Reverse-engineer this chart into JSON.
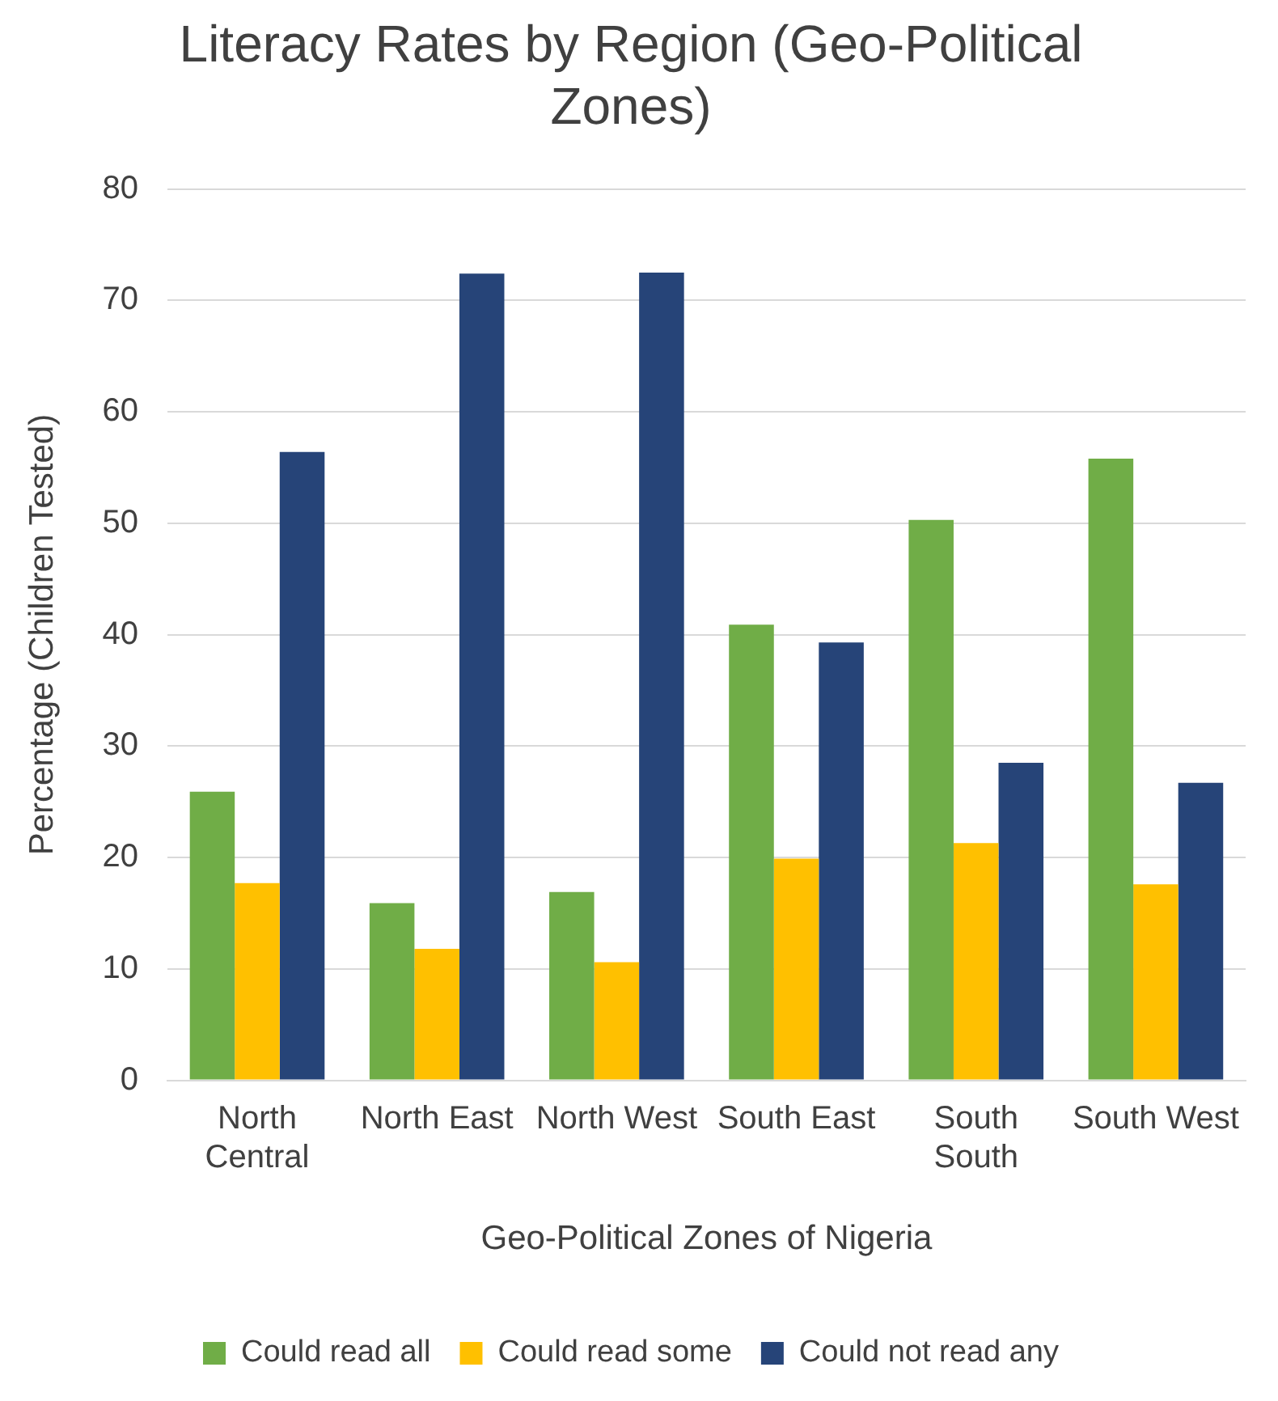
{
  "chart_data": {
    "type": "bar",
    "title": "Literacy Rates by Region (Geo-Political Zones)",
    "xlabel": "Geo-Political Zones of Nigeria",
    "ylabel": "Percentage (Children Tested)",
    "categories": [
      "North Central",
      "North East",
      "North West",
      "South East",
      "South South",
      "South West"
    ],
    "series": [
      {
        "name": "Could read all",
        "color": "#70ad47",
        "values": [
          25.9,
          15.9,
          16.9,
          40.9,
          50.3,
          55.8
        ]
      },
      {
        "name": "Could read some",
        "color": "#ffc000",
        "values": [
          17.7,
          11.8,
          10.6,
          19.9,
          21.3,
          17.6
        ]
      },
      {
        "name": "Could not read any",
        "color": "#264478",
        "values": [
          56.4,
          72.4,
          72.5,
          39.3,
          28.5,
          26.7
        ]
      }
    ],
    "ylim": [
      0,
      80
    ],
    "yticks": [
      0,
      10,
      20,
      30,
      40,
      50,
      60,
      70,
      80
    ],
    "grid": "y",
    "legend": "bottom"
  }
}
